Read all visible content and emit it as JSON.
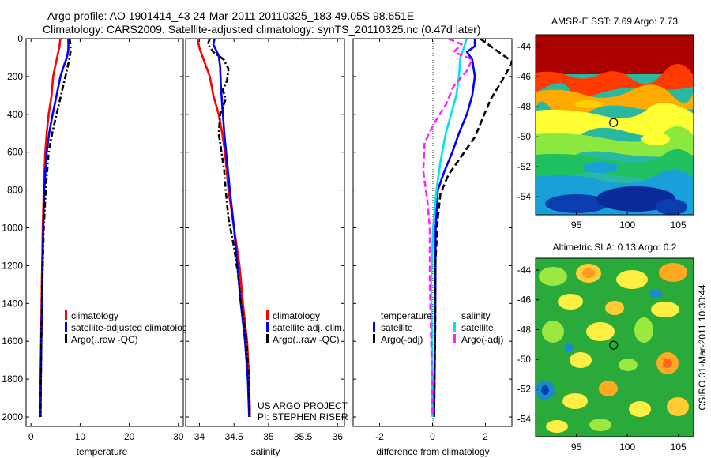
{
  "header": {
    "line1": "Argo profile: AO 1901414_43 24-Mar-2011 20110325_183 49.05S 98.651E",
    "line2": "Climatology: CARS2009. Satellite-adjusted climatology: synTS_20110325.nc (0.47d later)"
  },
  "colors": {
    "climatology": "#ff0000",
    "satellite": "#0000ff",
    "argo": "#000000",
    "sal_satellite": "#00e5e5",
    "sal_argo": "#ff22ff"
  },
  "chart_data": [
    {
      "id": "temperature",
      "type": "line",
      "xlabel": "temperature",
      "ylabel": "",
      "xlim": [
        -1,
        31
      ],
      "ylim": [
        2050,
        0
      ],
      "xticks": [
        0,
        10,
        20,
        30
      ],
      "yticks": [
        0,
        200,
        400,
        600,
        800,
        1000,
        1200,
        1400,
        1600,
        1800,
        2000
      ],
      "legend": [
        "climatology",
        "satellite-adjusted climatolog",
        "Argo(..raw -QC)"
      ],
      "series": [
        {
          "name": "climatology",
          "color": "#ff0000",
          "dash": "",
          "points": [
            [
              6.0,
              0
            ],
            [
              5.8,
              40
            ],
            [
              5.4,
              90
            ],
            [
              4.9,
              150
            ],
            [
              4.5,
              200
            ],
            [
              4.2,
              300
            ],
            [
              3.6,
              400
            ],
            [
              3.2,
              500
            ],
            [
              2.9,
              600
            ],
            [
              2.6,
              800
            ],
            [
              2.4,
              1000
            ],
            [
              2.2,
              1300
            ],
            [
              2.05,
              1600
            ],
            [
              1.95,
              1800
            ],
            [
              1.9,
              2000
            ]
          ]
        },
        {
          "name": "satellite-adjusted climatolog",
          "color": "#0000ff",
          "dash": "",
          "points": [
            [
              7.6,
              0
            ],
            [
              7.6,
              60
            ],
            [
              7.3,
              100
            ],
            [
              6.6,
              150
            ],
            [
              6.0,
              200
            ],
            [
              5.2,
              300
            ],
            [
              4.4,
              400
            ],
            [
              3.7,
              500
            ],
            [
              3.2,
              600
            ],
            [
              2.7,
              800
            ],
            [
              2.5,
              1000
            ],
            [
              2.3,
              1300
            ],
            [
              2.1,
              1600
            ],
            [
              2.0,
              1800
            ],
            [
              1.95,
              2000
            ]
          ]
        },
        {
          "name": "Argo(..raw -QC)",
          "color": "#000000",
          "dash": "7,3,2,3",
          "points": [
            [
              7.9,
              0
            ],
            [
              8.1,
              60
            ],
            [
              7.8,
              110
            ],
            [
              7.0,
              200
            ],
            [
              6.1,
              300
            ],
            [
              5.2,
              400
            ],
            [
              4.3,
              500
            ],
            [
              3.6,
              600
            ],
            [
              3.0,
              800
            ],
            [
              2.6,
              1000
            ],
            [
              2.3,
              1300
            ],
            [
              2.1,
              1600
            ],
            [
              2.0,
              1800
            ],
            [
              1.95,
              2000
            ]
          ]
        }
      ]
    },
    {
      "id": "salinity",
      "type": "line",
      "xlabel": "salinity",
      "ylabel": "",
      "xlim": [
        33.8,
        36.1
      ],
      "ylim": [
        2050,
        0
      ],
      "xticks": [
        34,
        34.5,
        35,
        35.5,
        36
      ],
      "legend": [
        "climatology",
        "satellite adj. clim.",
        "Argo(..raw -QC)"
      ],
      "annotation": [
        "US ARGO PROJECT",
        "PI: STEPHEN RISER"
      ],
      "series": [
        {
          "name": "climatology",
          "color": "#ff0000",
          "dash": "",
          "points": [
            [
              33.97,
              0
            ],
            [
              34.0,
              50
            ],
            [
              34.05,
              100
            ],
            [
              34.1,
              150
            ],
            [
              34.15,
              200
            ],
            [
              34.2,
              300
            ],
            [
              34.28,
              400
            ],
            [
              34.33,
              500
            ],
            [
              34.37,
              600
            ],
            [
              34.42,
              800
            ],
            [
              34.5,
              1000
            ],
            [
              34.58,
              1200
            ],
            [
              34.63,
              1400
            ],
            [
              34.69,
              1600
            ],
            [
              34.72,
              1800
            ],
            [
              34.73,
              2000
            ]
          ]
        },
        {
          "name": "satellite adj. clim.",
          "color": "#0000ff",
          "dash": "",
          "points": [
            [
              34.22,
              0
            ],
            [
              34.2,
              30
            ],
            [
              34.24,
              60
            ],
            [
              34.28,
              90
            ],
            [
              34.3,
              150
            ],
            [
              34.31,
              250
            ],
            [
              34.33,
              350
            ],
            [
              34.36,
              500
            ],
            [
              34.4,
              650
            ],
            [
              34.44,
              800
            ],
            [
              34.5,
              1000
            ],
            [
              34.55,
              1200
            ],
            [
              34.6,
              1400
            ],
            [
              34.66,
              1600
            ],
            [
              34.7,
              1800
            ],
            [
              34.72,
              2000
            ]
          ]
        },
        {
          "name": "Argo(..raw -QC)",
          "color": "#000000",
          "dash": "7,3,2,3",
          "points": [
            [
              34.15,
              0
            ],
            [
              34.12,
              30
            ],
            [
              34.2,
              70
            ],
            [
              34.35,
              110
            ],
            [
              34.42,
              160
            ],
            [
              34.4,
              220
            ],
            [
              34.34,
              270
            ],
            [
              34.38,
              320
            ],
            [
              34.3,
              400
            ],
            [
              34.28,
              500
            ],
            [
              34.32,
              600
            ],
            [
              34.36,
              700
            ],
            [
              34.38,
              800
            ],
            [
              34.42,
              950
            ],
            [
              34.5,
              1100
            ],
            [
              34.56,
              1250
            ],
            [
              34.6,
              1400
            ],
            [
              34.67,
              1550
            ],
            [
              34.7,
              1700
            ],
            [
              34.72,
              1850
            ],
            [
              34.73,
              2000
            ]
          ]
        }
      ]
    },
    {
      "id": "difference",
      "type": "line",
      "xlabel": "difference from climatology",
      "ylabel": "",
      "xlim": [
        -3.0,
        3.0
      ],
      "ylim": [
        2050,
        0
      ],
      "xticks": [
        -2,
        0,
        2
      ],
      "legend_temperature": {
        "heading": "temperature",
        "items": [
          "satellite",
          "Argo(-adj)"
        ]
      },
      "legend_salinity": {
        "heading": "salinity",
        "items": [
          "satellite",
          "Argo(-adj)"
        ]
      },
      "series": [
        {
          "name": "temperature satellite",
          "color": "#0000ff",
          "dash": "",
          "points": [
            [
              1.6,
              0
            ],
            [
              1.6,
              40
            ],
            [
              1.3,
              70
            ],
            [
              1.5,
              110
            ],
            [
              1.6,
              200
            ],
            [
              1.5,
              300
            ],
            [
              1.3,
              400
            ],
            [
              1.0,
              500
            ],
            [
              0.75,
              600
            ],
            [
              0.45,
              700
            ],
            [
              0.2,
              800
            ],
            [
              0.12,
              1000
            ],
            [
              0.1,
              1500
            ],
            [
              0.06,
              2000
            ]
          ]
        },
        {
          "name": "temperature Argo(-adj)",
          "color": "#000000",
          "dash": "8,4",
          "points": [
            [
              1.8,
              0
            ],
            [
              2.6,
              80
            ],
            [
              3.0,
              120
            ],
            [
              2.8,
              180
            ],
            [
              2.5,
              250
            ],
            [
              2.2,
              320
            ],
            [
              1.9,
              420
            ],
            [
              1.6,
              520
            ],
            [
              1.1,
              620
            ],
            [
              0.6,
              720
            ],
            [
              0.3,
              820
            ],
            [
              0.2,
              950
            ],
            [
              0.1,
              1200
            ],
            [
              0.1,
              1500
            ],
            [
              0.06,
              2000
            ]
          ]
        },
        {
          "name": "salinity satellite",
          "color": "#00e5e5",
          "dash": "",
          "points": [
            [
              1.3,
              0
            ],
            [
              1.2,
              40
            ],
            [
              1.05,
              100
            ],
            [
              1.0,
              200
            ],
            [
              0.9,
              300
            ],
            [
              0.7,
              400
            ],
            [
              0.5,
              500
            ],
            [
              0.3,
              650
            ],
            [
              0.15,
              800
            ],
            [
              0.02,
              1000
            ],
            [
              -0.05,
              1300
            ],
            [
              -0.02,
              1600
            ],
            [
              0.0,
              2000
            ]
          ]
        },
        {
          "name": "salinity Argo(-adj)",
          "color": "#ff22ff",
          "dash": "8,4",
          "points": [
            [
              0.6,
              0
            ],
            [
              1.1,
              30
            ],
            [
              0.8,
              70
            ],
            [
              1.5,
              110
            ],
            [
              1.3,
              170
            ],
            [
              0.8,
              250
            ],
            [
              0.5,
              350
            ],
            [
              0.05,
              450
            ],
            [
              -0.3,
              550
            ],
            [
              -0.35,
              700
            ],
            [
              -0.2,
              850
            ],
            [
              -0.1,
              1000
            ],
            [
              -0.1,
              1300
            ],
            [
              -0.05,
              1600
            ],
            [
              0.0,
              2000
            ]
          ]
        }
      ]
    },
    {
      "id": "sst_map",
      "type": "heatmap",
      "title": "AMSR-E SST: 7.69 Argo: 7.73",
      "xlim": [
        91.0,
        106.5
      ],
      "ylim": [
        -55.2,
        -43.2
      ],
      "xticks": [
        95,
        100,
        105
      ],
      "yticks": [
        -44,
        -46,
        -48,
        -50,
        -52,
        -54
      ],
      "marker": [
        98.651,
        -49.05
      ]
    },
    {
      "id": "sla_map",
      "type": "heatmap",
      "title": "Altimetric SLA: 0.13 Argo: 0.2",
      "xlim": [
        91.0,
        106.5
      ],
      "ylim": [
        -55.2,
        -43.2
      ],
      "xticks": [
        95,
        100,
        105
      ],
      "yticks": [
        -44,
        -46,
        -48,
        -50,
        -52,
        -54
      ],
      "marker": [
        98.651,
        -49.05
      ]
    }
  ],
  "footer": {
    "side_label": "CSIRO 31-Mar-2011 10:30:44"
  }
}
